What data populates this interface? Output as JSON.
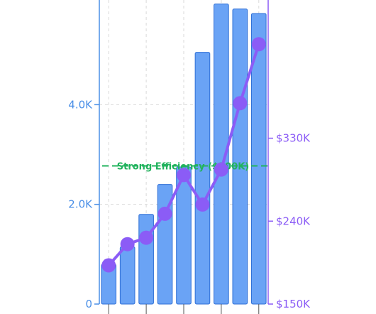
{
  "chart_data": {
    "type": "bar",
    "categories": [
      "",
      "",
      "",
      "",
      "",
      "",
      "",
      "",
      ""
    ],
    "series": [
      {
        "axis": "left",
        "type": "bar",
        "values": [
          800,
          1150,
          1800,
          2400,
          2750,
          5050,
          6020,
          5920,
          5830
        ]
      },
      {
        "axis": "right",
        "type": "line",
        "values": [
          192000,
          215000,
          222000,
          248000,
          290000,
          258000,
          296000,
          368000,
          432000
        ]
      }
    ],
    "y_left": {
      "ticks": [
        0,
        2000,
        4000
      ],
      "tick_labels": [
        "0",
        "2.0K",
        "4.0K"
      ],
      "ylim": [
        0,
        6100
      ]
    },
    "y_right": {
      "ticks": [
        150000,
        240000,
        330000
      ],
      "tick_labels": [
        "$150K",
        "$240K",
        "$330K"
      ],
      "ylim": [
        150000,
        480000
      ]
    },
    "reference_line": {
      "axis": "right",
      "value": 300000,
      "label": "Strong Efficiency ($300K)"
    },
    "grid": true,
    "colors": {
      "bar_fill": "#6aa3f5",
      "bar_stroke": "#2f6fd6",
      "line": "#8b5cf6",
      "left_axis": "#4a8fe7",
      "right_axis": "#8b5cf6",
      "reference": "#22b35e",
      "grid": "#d9d9d9"
    }
  }
}
